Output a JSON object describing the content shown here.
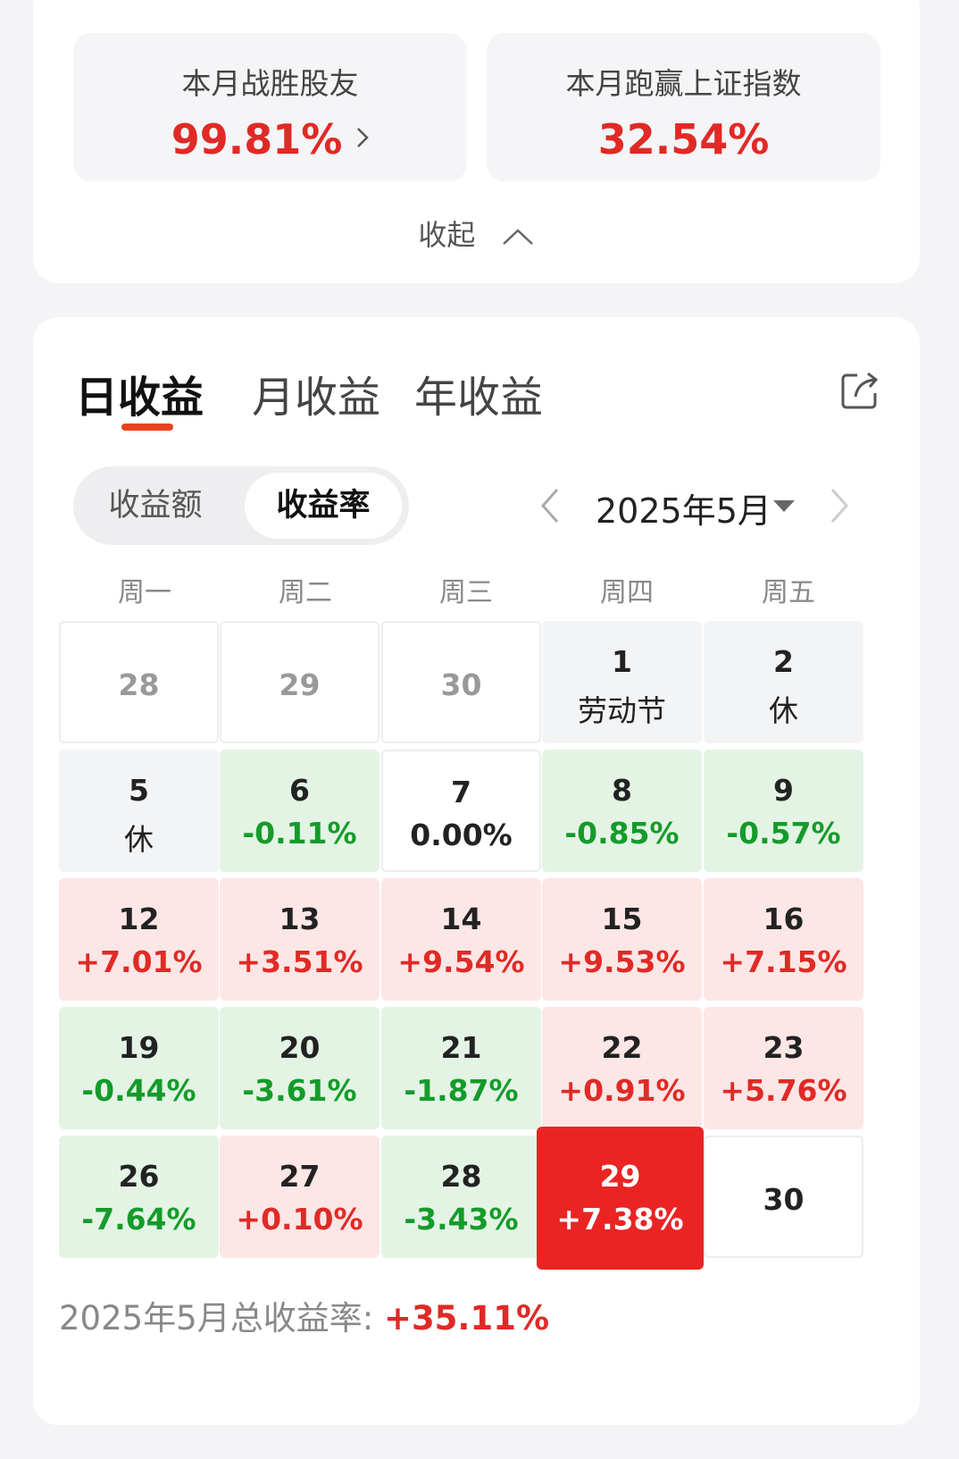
{
  "top_card": {
    "beat_friends_label": "本月战胜股友",
    "beat_friends_value": "99.81%",
    "beat_index_label": "本月跑赢上证指数",
    "beat_index_value": "32.54%",
    "collapse_label": "收起"
  },
  "tabs": [
    {
      "label": "日收益",
      "active": true
    },
    {
      "label": "月收益",
      "active": false
    },
    {
      "label": "年收益",
      "active": false
    }
  ],
  "toggle": {
    "amount_label": "收益额",
    "rate_label": "收益率",
    "selected": "收益率"
  },
  "month_selector": {
    "label": "2025年5月"
  },
  "weekdays": [
    "周一",
    "周二",
    "周三",
    "周四",
    "周五"
  ],
  "calendar": [
    [
      {
        "day": "28",
        "type": "out",
        "text": ""
      },
      {
        "day": "29",
        "type": "out",
        "text": ""
      },
      {
        "day": "30",
        "type": "out",
        "text": ""
      },
      {
        "day": "1",
        "type": "holiday",
        "text": "劳动节"
      },
      {
        "day": "2",
        "type": "holiday",
        "text": "休"
      }
    ],
    [
      {
        "day": "5",
        "type": "holiday",
        "text": "休"
      },
      {
        "day": "6",
        "type": "loss",
        "text": "-0.11%"
      },
      {
        "day": "7",
        "type": "zero",
        "text": "0.00%"
      },
      {
        "day": "8",
        "type": "loss",
        "text": "-0.85%"
      },
      {
        "day": "9",
        "type": "loss",
        "text": "-0.57%"
      }
    ],
    [
      {
        "day": "12",
        "type": "gain",
        "text": "+7.01%"
      },
      {
        "day": "13",
        "type": "gain",
        "text": "+3.51%"
      },
      {
        "day": "14",
        "type": "gain",
        "text": "+9.54%"
      },
      {
        "day": "15",
        "type": "gain",
        "text": "+9.53%"
      },
      {
        "day": "16",
        "type": "gain",
        "text": "+7.15%"
      }
    ],
    [
      {
        "day": "19",
        "type": "loss",
        "text": "-0.44%"
      },
      {
        "day": "20",
        "type": "loss",
        "text": "-3.61%"
      },
      {
        "day": "21",
        "type": "loss",
        "text": "-1.87%"
      },
      {
        "day": "22",
        "type": "gain",
        "text": "+0.91%"
      },
      {
        "day": "23",
        "type": "gain",
        "text": "+5.76%"
      }
    ],
    [
      {
        "day": "26",
        "type": "loss",
        "text": "-7.64%"
      },
      {
        "day": "27",
        "type": "gain",
        "text": "+0.10%"
      },
      {
        "day": "28",
        "type": "loss",
        "text": "-3.43%"
      },
      {
        "day": "29",
        "type": "today",
        "text": "+7.38%"
      },
      {
        "day": "30",
        "type": "empty",
        "text": ""
      }
    ]
  ],
  "total": {
    "label": "2025年5月总收益率: ",
    "value": "+35.11%"
  },
  "colors": {
    "gain_text": "#e02a26",
    "loss_text": "#159b2a",
    "gain_bg": "#fde6e6",
    "loss_bg": "#e3f4e5",
    "today_bg": "#eb2323",
    "tab_underline": "#e8431d"
  },
  "icons": {
    "chevron": "chevron-right-icon",
    "collapse": "chevron-up-icon",
    "share": "share-icon",
    "prev": "chevron-left-icon",
    "next": "chevron-right-icon",
    "dropdown": "caret-down-icon"
  }
}
